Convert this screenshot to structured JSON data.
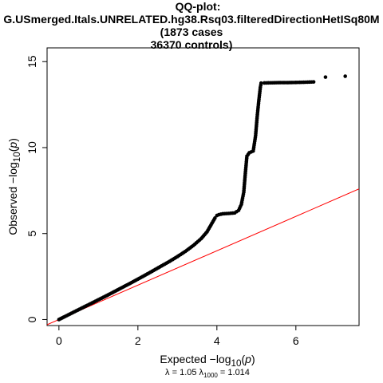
{
  "chart_data": {
    "type": "scatter",
    "title_lines": [
      "QQ-plot:",
      "G.USmerged.Itals.UNRELATED.hg38.Rsq03.filteredDirectionHetISq80M",
      "(1873 cases",
      "36370 controls)"
    ],
    "xlabel_prefix": "Expected  −log",
    "xlabel_sub": "10",
    "xlabel_var": "p",
    "ylabel_prefix": "Observed  −log",
    "ylabel_sub": "10",
    "ylabel_var": "p",
    "lambda_text": "λ = 1.05  λ",
    "lambda_sub": "1000",
    "lambda1000_text": " = 1.014",
    "lambda": 1.05,
    "lambda_1000": 1.014,
    "xlim": [
      -0.3,
      7.6
    ],
    "ylim": [
      -0.35,
      15.8
    ],
    "xticks": [
      0,
      2,
      4,
      6
    ],
    "yticks": [
      0,
      5,
      10,
      15
    ],
    "grid": false,
    "diagonal_color": "#ff0000",
    "point_color": "#000000",
    "series": [
      {
        "points": [
          [
            0,
            0
          ],
          [
            0.2,
            0.23
          ],
          [
            0.4,
            0.46
          ],
          [
            0.6,
            0.69
          ],
          [
            0.8,
            0.92
          ],
          [
            1.0,
            1.15
          ],
          [
            1.2,
            1.38
          ],
          [
            1.4,
            1.62
          ],
          [
            1.6,
            1.86
          ],
          [
            1.8,
            2.1
          ],
          [
            2.0,
            2.35
          ],
          [
            2.2,
            2.6
          ],
          [
            2.4,
            2.86
          ],
          [
            2.6,
            3.12
          ],
          [
            2.8,
            3.38
          ],
          [
            3.0,
            3.66
          ],
          [
            3.2,
            3.96
          ],
          [
            3.4,
            4.3
          ],
          [
            3.6,
            4.7
          ],
          [
            3.75,
            5.1
          ],
          [
            3.85,
            5.5
          ],
          [
            3.95,
            5.9
          ],
          [
            4.0,
            6.05
          ],
          [
            4.05,
            6.1
          ],
          [
            4.15,
            6.15
          ],
          [
            4.3,
            6.17
          ],
          [
            4.45,
            6.2
          ],
          [
            4.55,
            6.35
          ],
          [
            4.62,
            6.7
          ],
          [
            4.68,
            7.4
          ],
          [
            4.72,
            8.5
          ],
          [
            4.76,
            9.5
          ],
          [
            4.82,
            9.7
          ],
          [
            4.92,
            9.8
          ],
          [
            4.98,
            10.7
          ],
          [
            5.02,
            11.8
          ],
          [
            5.06,
            12.7
          ],
          [
            5.1,
            13.5
          ],
          [
            5.12,
            13.75
          ],
          [
            5.2,
            13.76
          ],
          [
            5.4,
            13.77
          ],
          [
            5.6,
            13.78
          ],
          [
            5.8,
            13.78
          ],
          [
            6.0,
            13.79
          ],
          [
            6.2,
            13.8
          ],
          [
            6.45,
            13.82
          ],
          [
            6.75,
            14.1
          ],
          [
            7.25,
            14.15
          ]
        ]
      }
    ]
  }
}
